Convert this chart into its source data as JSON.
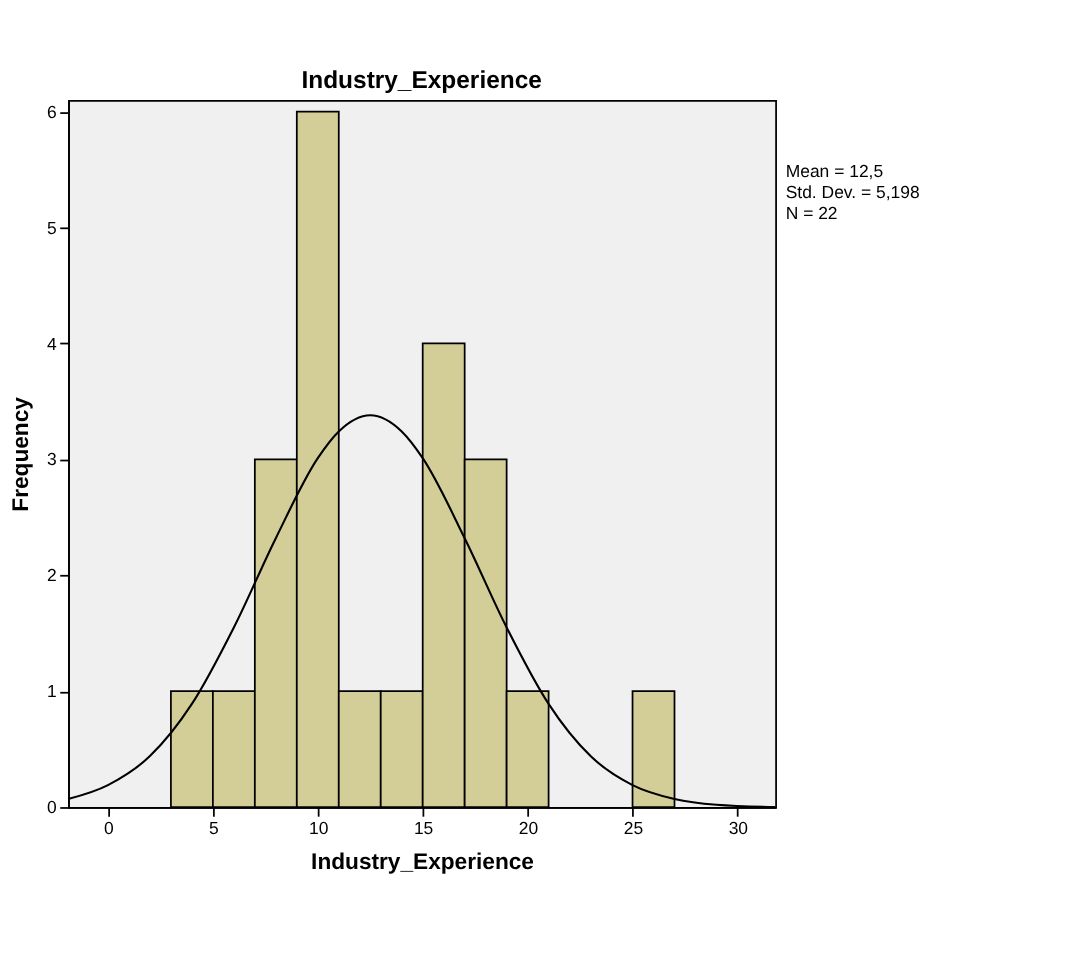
{
  "chart_data": {
    "type": "histogram",
    "title": "Industry_Experience",
    "xlabel": "Industry_Experience",
    "ylabel": "Frequency",
    "bins": [
      3,
      5,
      7,
      9,
      11,
      13,
      15,
      17,
      19,
      21,
      23,
      25,
      27
    ],
    "values": [
      1,
      1,
      3,
      6,
      1,
      1,
      4,
      3,
      1,
      0,
      0,
      1
    ],
    "color": "#d3ce97",
    "series": [
      {
        "type": "line",
        "color": "#000000",
        "x": [
          -1.9,
          0,
          2,
          4,
          6,
          8,
          10,
          11,
          12.5,
          14,
          15,
          17,
          19,
          21,
          23,
          25,
          27,
          29,
          31.8
        ],
        "values": [
          0.07,
          0.19,
          0.44,
          0.89,
          1.55,
          2.32,
          3.01,
          3.24,
          3.38,
          3.24,
          3.01,
          2.32,
          1.55,
          0.89,
          0.44,
          0.19,
          0.07,
          0.02,
          0.0
        ]
      }
    ],
    "xlim": [
      -1.9,
      31.8
    ],
    "xticks": [
      0,
      5,
      10,
      15,
      20,
      25,
      30
    ],
    "ylim": [
      0,
      6.1
    ],
    "yticks": [
      0,
      1,
      2,
      3,
      4,
      5,
      6
    ],
    "grid": false,
    "annotations": [
      "Mean = 12,5",
      "Std. Dev. = 5,198",
      "N = 22"
    ]
  }
}
